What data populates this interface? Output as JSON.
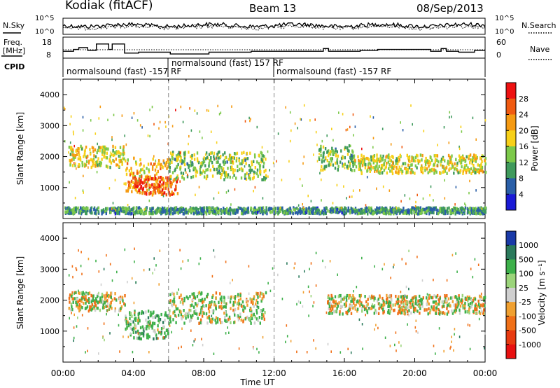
{
  "header": {
    "site": "Kodiak (fitACF)",
    "beam": "Beam 13",
    "date": "08/Sep/2013"
  },
  "noise_panel": {
    "left_label": "N.Sky",
    "right_label": "N.Search",
    "ytick_top": "10^5",
    "ytick_bottom": "10^0"
  },
  "freq_panel": {
    "left_label_1": "Freq.",
    "left_label_2": "[MHz]",
    "right_label": "Nave",
    "left_ticks": [
      "18",
      "8"
    ],
    "right_ticks": [
      "60",
      "0"
    ]
  },
  "cpid_panel": {
    "label": "CPID",
    "segments": [
      {
        "text": "normalsound (fast) -157 RF",
        "start_hour": 0.0
      },
      {
        "text": "normalsound (fast) 157 RF",
        "start_hour": 6.0
      },
      {
        "text": "normalsound (fast) -157 RF",
        "start_hour": 12.0
      }
    ]
  },
  "colors": {
    "axis": "#000000",
    "divider": "#888888"
  },
  "chart_data": [
    {
      "type": "line",
      "x_range_hours": [
        0,
        24
      ],
      "series": [
        {
          "name": "N.Sky",
          "style": "solid",
          "level": 0.55
        },
        {
          "name": "N.Search",
          "style": "dotted",
          "level": 0.45
        }
      ],
      "ylim_log10": [
        0,
        5
      ]
    },
    {
      "type": "line",
      "x_range_hours": [
        0,
        24
      ],
      "series": [
        {
          "name": "Freq.",
          "style": "solid",
          "steps": [
            [
              0,
              11
            ],
            [
              0.6,
              12
            ],
            [
              0.9,
              13
            ],
            [
              1.4,
              11.5
            ],
            [
              1.9,
              15
            ],
            [
              2.6,
              12
            ],
            [
              2.8,
              15
            ],
            [
              3.5,
              10
            ],
            [
              4.3,
              10.5
            ],
            [
              6.1,
              9.5
            ],
            [
              8.3,
              10.5
            ],
            [
              10.7,
              11
            ],
            [
              14.8,
              12.5
            ],
            [
              15.1,
              11
            ],
            [
              16.9,
              11.5
            ],
            [
              17.9,
              12
            ],
            [
              20.9,
              11
            ],
            [
              21.5,
              12.5
            ],
            [
              21.8,
              11
            ],
            [
              22.5,
              10.5
            ],
            [
              23.4,
              11.5
            ],
            [
              24,
              11
            ]
          ]
        },
        {
          "name": "Nave",
          "style": "dotted",
          "level": 0.5
        }
      ],
      "left_ylim": [
        8,
        18
      ],
      "right_ylim": [
        0,
        60
      ]
    },
    {
      "type": "heatmap",
      "title": "",
      "xlabel": "",
      "ylabel": "Slant Range [km]",
      "colorbar_label": "Power [dB]",
      "colorbar_ticks": [
        "28",
        "24",
        "20",
        "16",
        "12",
        "8",
        "4"
      ],
      "colorbar_colors": [
        "#ee1111",
        "#f05a10",
        "#f59a12",
        "#f7d018",
        "#7cc94a",
        "#3f9a5c",
        "#2a5fa8",
        "#1a1ad6"
      ],
      "ylim": [
        0,
        4500
      ],
      "yticks": [
        1000,
        2000,
        3000,
        4000
      ],
      "xlim_hours": [
        0,
        24
      ],
      "xticks_hours": [
        0,
        4,
        8,
        12,
        16,
        20,
        24
      ],
      "echo_regions": [
        {
          "h0": 0.3,
          "h1": 3.5,
          "r0": 1700,
          "r1": 2400,
          "power": 16
        },
        {
          "h0": 3.5,
          "h1": 6.0,
          "r0": 900,
          "r1": 2000,
          "power": 20
        },
        {
          "h0": 4.0,
          "h1": 6.5,
          "r0": 800,
          "r1": 1400,
          "power": 26
        },
        {
          "h0": 6.0,
          "h1": 11.5,
          "r0": 1300,
          "r1": 2200,
          "power": 12
        },
        {
          "h0": 14.5,
          "h1": 16.5,
          "r0": 1600,
          "r1": 2400,
          "power": 12
        },
        {
          "h0": 16.5,
          "h1": 24,
          "r0": 1500,
          "r1": 2100,
          "power": 16
        },
        {
          "h0": 0,
          "h1": 24,
          "r0": 200,
          "r1": 400,
          "power": 8
        }
      ]
    },
    {
      "type": "heatmap",
      "title": "",
      "xlabel": "Time UT",
      "ylabel": "Slant Range [km]",
      "colorbar_label": "Velocity [m s^-1]",
      "colorbar_ticks": [
        "1000",
        "500",
        "100",
        "25",
        "-25",
        "-100",
        "-500",
        "-1000"
      ],
      "colorbar_colors": [
        "#1a3aa8",
        "#2b7a5c",
        "#3db04a",
        "#9bd47a",
        "#cfcfcf",
        "#f0a030",
        "#f07018",
        "#e83a10",
        "#e81010"
      ],
      "ylim": [
        0,
        4500
      ],
      "yticks": [
        1000,
        2000,
        3000,
        4000
      ],
      "xlim_hours": [
        0,
        24
      ],
      "xticks_hours": [
        0,
        4,
        8,
        12,
        16,
        20,
        24
      ],
      "xtick_labels": [
        "00:00",
        "04:00",
        "08:00",
        "12:00",
        "16:00",
        "20:00",
        "00:00"
      ],
      "echo_regions": [
        {
          "h0": 0.3,
          "h1": 3.5,
          "r0": 1700,
          "r1": 2300,
          "velocity": 0
        },
        {
          "h0": 3.5,
          "h1": 6.0,
          "r0": 800,
          "r1": 1700,
          "velocity": 150
        },
        {
          "h0": 6.0,
          "h1": 11.5,
          "r0": 1300,
          "r1": 2300,
          "velocity": 60
        },
        {
          "h0": 15.0,
          "h1": 24,
          "r0": 1600,
          "r1": 2200,
          "velocity": 0
        }
      ]
    }
  ]
}
